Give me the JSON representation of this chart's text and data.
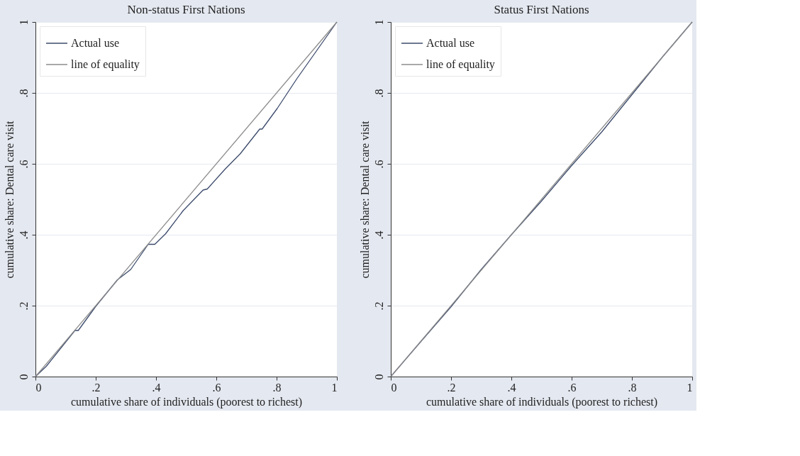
{
  "chart_data": [
    {
      "type": "line",
      "title": "Non-status First Nations",
      "xlabel": "cumulative share of individuals (poorest to richest)",
      "ylabel": "cumulative share: Dental care visit",
      "series": [
        {
          "name": "Actual use",
          "color": "#3b4a6b",
          "x": [
            0,
            0.036,
            0.131,
            0.142,
            0.2,
            0.272,
            0.316,
            0.374,
            0.396,
            0.432,
            0.49,
            0.556,
            0.57,
            0.628,
            0.679,
            0.744,
            0.752,
            0.802,
            0.868,
            1
          ],
          "values": [
            0,
            0.029,
            0.13,
            0.13,
            0.198,
            0.273,
            0.302,
            0.373,
            0.373,
            0.403,
            0.468,
            0.526,
            0.529,
            0.584,
            0.628,
            0.698,
            0.698,
            0.756,
            0.841,
            1
          ]
        },
        {
          "name": "line of equality",
          "color": "#8c8c8c",
          "x": [
            0,
            1
          ],
          "values": [
            0,
            1
          ]
        }
      ],
      "xlim": [
        0,
        1
      ],
      "ylim": [
        0,
        1
      ],
      "xticks": [
        0,
        {
          "value": 0.2,
          "label": ".2"
        },
        {
          "value": 0.4,
          "label": ".4"
        },
        {
          "value": 0.6,
          "label": ".6"
        },
        {
          "value": 0.8,
          "label": ".8"
        },
        1
      ],
      "yticks": [
        0,
        {
          "value": 0.2,
          "label": ".2"
        },
        {
          "value": 0.4,
          "label": ".4"
        },
        {
          "value": 0.6,
          "label": ".6"
        },
        {
          "value": 0.8,
          "label": ".8"
        },
        1
      ],
      "grid": "y",
      "legend": "top left"
    },
    {
      "type": "line",
      "title": "Status First Nations",
      "xlabel": "cumulative share of individuals (poorest to richest)",
      "ylabel": "cumulative share: Dental care visit",
      "series": [
        {
          "name": "Actual use",
          "color": "#3b4a6b",
          "x": [
            0,
            0.1,
            0.2,
            0.3,
            0.4,
            0.5,
            0.6,
            0.7,
            0.8,
            0.9,
            1
          ],
          "values": [
            0,
            0.099,
            0.197,
            0.302,
            0.4,
            0.495,
            0.595,
            0.69,
            0.795,
            0.9,
            1
          ]
        },
        {
          "name": "line of equality",
          "color": "#8c8c8c",
          "x": [
            0,
            1
          ],
          "values": [
            0,
            1
          ]
        }
      ],
      "xlim": [
        0,
        1
      ],
      "ylim": [
        0,
        1
      ],
      "xticks": [
        0,
        {
          "value": 0.2,
          "label": ".2"
        },
        {
          "value": 0.4,
          "label": ".4"
        },
        {
          "value": 0.6,
          "label": ".6"
        },
        {
          "value": 0.8,
          "label": ".8"
        },
        1
      ],
      "yticks": [
        0,
        {
          "value": 0.2,
          "label": ".2"
        },
        {
          "value": 0.4,
          "label": ".4"
        },
        {
          "value": 0.6,
          "label": ".6"
        },
        {
          "value": 0.8,
          "label": ".8"
        },
        1
      ],
      "grid": "y",
      "legend": "top left"
    }
  ]
}
